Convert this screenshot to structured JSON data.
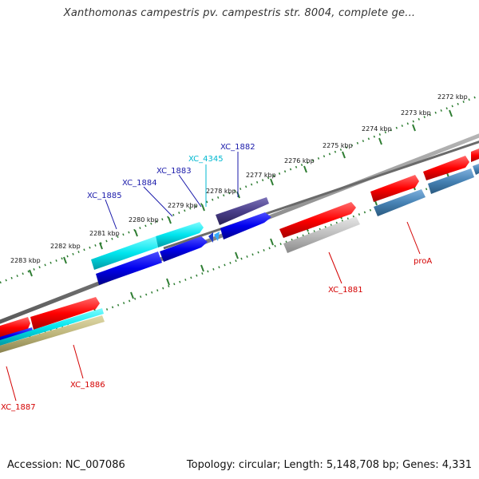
{
  "title": "Xanthomonas campestris pv. campestris str. 8004, complete ge...",
  "footer": {
    "accession": "Accession: NC_007086",
    "topology": "Topology: circular; Length: 5,148,708 bp; Genes: 4,331"
  },
  "colors": {
    "backbone": "#8a8a8a",
    "tick_green": "#2e7d32",
    "gene_red": "#ff1a1a",
    "gene_blue": "#0000ee",
    "gene_cyan": "#00e5ee",
    "gene_purple": "#4a3f8a",
    "gene_steel": "#4682b4",
    "gene_gray": "#bbbbbb",
    "gene_tan": "#bdb57a",
    "label_blue": "#1a1aaa",
    "label_red": "#d40000",
    "label_cyan": "#00b8d0"
  },
  "kbp_labels": [
    "2272 kbp",
    "2273 kbp",
    "2274 kbp",
    "2275 kbp",
    "2276 kbp",
    "2277 kbp",
    "2278 kbp",
    "2279 kbp",
    "2280 kbp",
    "2281 kbp",
    "2282 kbp",
    "2283 kbp"
  ],
  "gene_labels": {
    "xc1882": "XC_1882",
    "xc4345": "XC_4345",
    "xc1883": "XC_1883",
    "xc1884": "XC_1884",
    "xc1885": "XC_1885",
    "xc1881": "XC_1881",
    "proa": "proA",
    "xc1886": "XC_1886",
    "xc1887": "XC_1887"
  }
}
